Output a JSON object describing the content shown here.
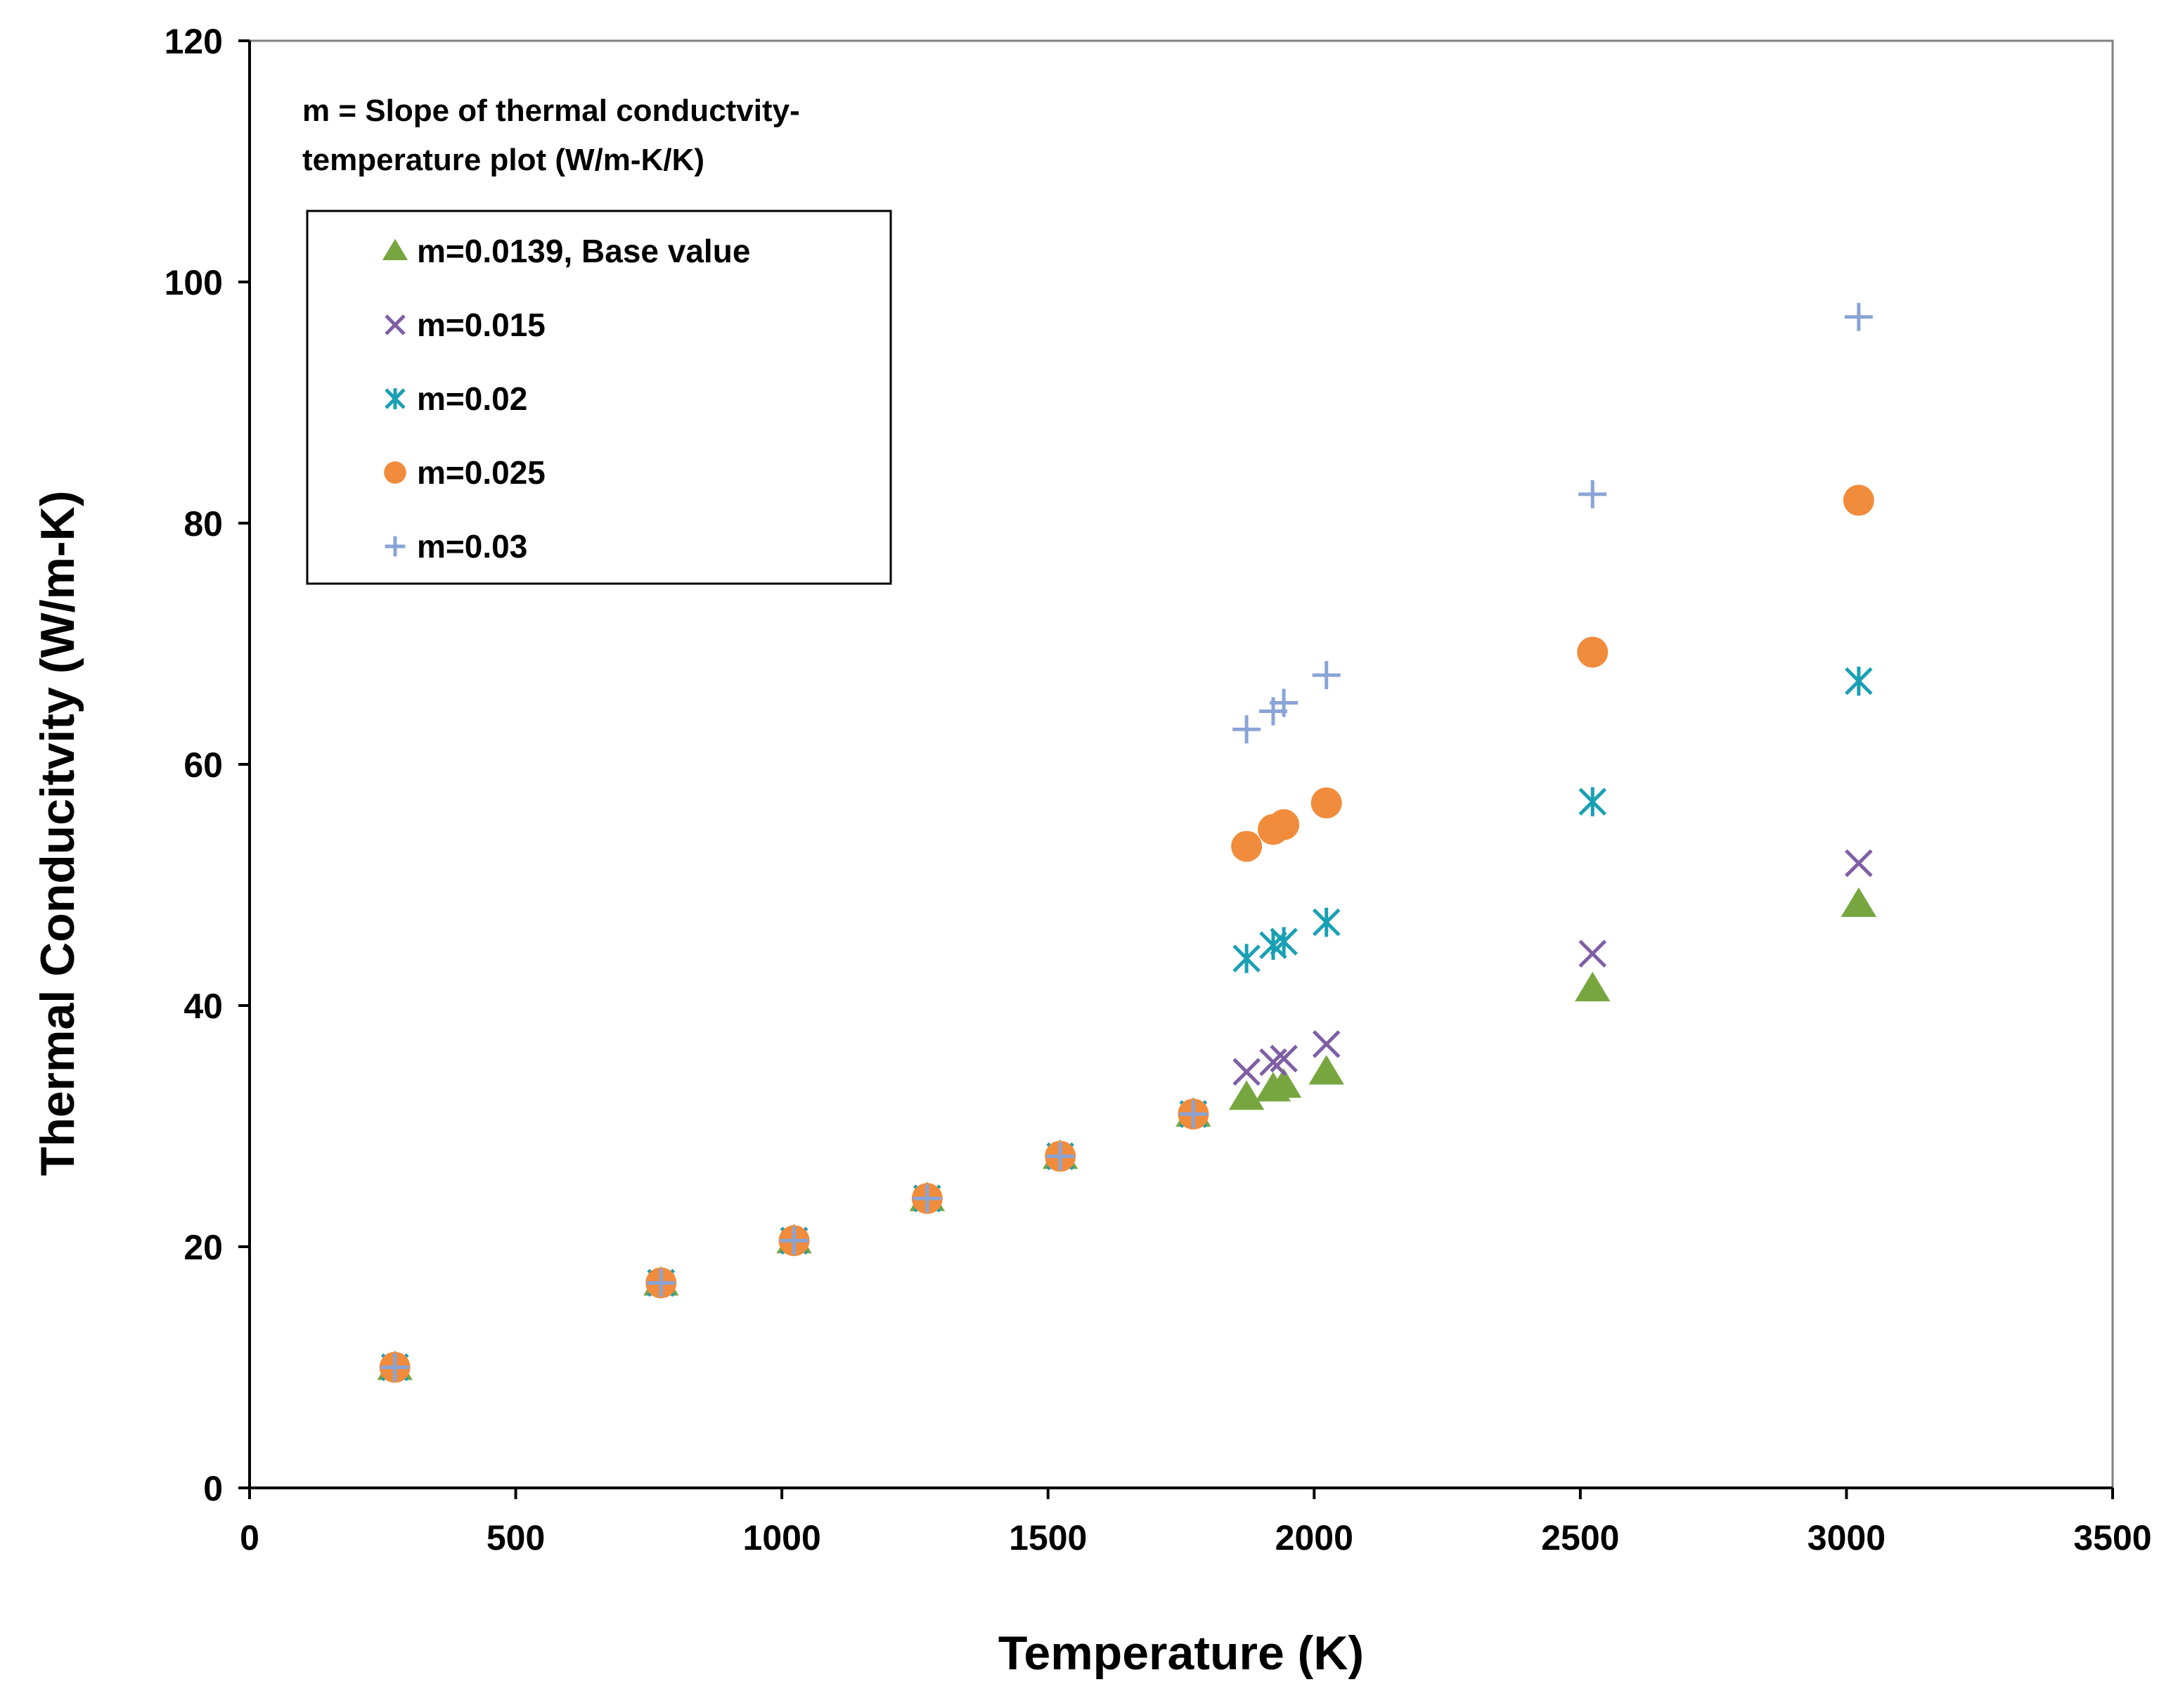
{
  "chart_data": {
    "type": "scatter",
    "title": "",
    "xlabel": "Temperature (K)",
    "ylabel": "Thermal Conducitvity (W/m-K)",
    "xlim": [
      0,
      3500
    ],
    "ylim": [
      0,
      120
    ],
    "xticks": [
      0,
      500,
      1000,
      1500,
      2000,
      2500,
      3000,
      3500
    ],
    "yticks": [
      0,
      20,
      40,
      60,
      80,
      100,
      120
    ],
    "xtick_labels": [
      "0",
      "500",
      "1000",
      "1500",
      "2000",
      "2500",
      "3000",
      "3500"
    ],
    "ytick_labels": [
      "0",
      "20",
      "40",
      "60",
      "80",
      "100",
      "120"
    ],
    "grid": false,
    "annotation": {
      "line1": "m = Slope of thermal conductvity-",
      "line2": "temperature plot (W/m-K/K)"
    },
    "legend_position": "top-left",
    "series": [
      {
        "name": "m=0.0139, Base value",
        "marker": "triangle",
        "color": "#77a640",
        "points": [
          [
            273,
            10
          ],
          [
            773,
            17
          ],
          [
            1023,
            20.5
          ],
          [
            1273,
            24
          ],
          [
            1523,
            27.5
          ],
          [
            1773,
            31
          ],
          [
            1873,
            32.4
          ],
          [
            1923,
            33.1
          ],
          [
            1943,
            33.4
          ],
          [
            2023,
            34.5
          ],
          [
            2523,
            41.4
          ],
          [
            3023,
            48.4
          ]
        ]
      },
      {
        "name": "m=0.015",
        "marker": "x",
        "color": "#7f5ea5",
        "points": [
          [
            273,
            10
          ],
          [
            773,
            17
          ],
          [
            1023,
            20.5
          ],
          [
            1273,
            24
          ],
          [
            1523,
            27.5
          ],
          [
            1773,
            31
          ],
          [
            1873,
            34.5
          ],
          [
            1923,
            35.3
          ],
          [
            1943,
            35.6
          ],
          [
            2023,
            36.8
          ],
          [
            2523,
            44.3
          ],
          [
            3023,
            51.8
          ]
        ]
      },
      {
        "name": "m=0.02",
        "marker": "star",
        "color": "#1aa0b4",
        "points": [
          [
            273,
            10
          ],
          [
            773,
            17
          ],
          [
            1023,
            20.5
          ],
          [
            1273,
            24
          ],
          [
            1523,
            27.5
          ],
          [
            1773,
            31
          ],
          [
            1873,
            43.9
          ],
          [
            1923,
            45
          ],
          [
            1943,
            45.3
          ],
          [
            2023,
            46.9
          ],
          [
            2523,
            56.9
          ],
          [
            3023,
            66.9
          ]
        ]
      },
      {
        "name": "m=0.025",
        "marker": "circle",
        "color": "#f08c3c",
        "points": [
          [
            273,
            10
          ],
          [
            773,
            17
          ],
          [
            1023,
            20.5
          ],
          [
            1273,
            24
          ],
          [
            1523,
            27.5
          ],
          [
            1773,
            31
          ],
          [
            1873,
            53.2
          ],
          [
            1923,
            54.6
          ],
          [
            1943,
            55
          ],
          [
            2023,
            56.8
          ],
          [
            2523,
            69.3
          ],
          [
            3023,
            81.9
          ]
        ]
      },
      {
        "name": "m=0.03",
        "marker": "plus",
        "color": "#8aa4d6",
        "points": [
          [
            273,
            10
          ],
          [
            773,
            17
          ],
          [
            1023,
            20.5
          ],
          [
            1273,
            24
          ],
          [
            1523,
            27.5
          ],
          [
            1773,
            31
          ],
          [
            1873,
            62.9
          ],
          [
            1923,
            64.4
          ],
          [
            1943,
            65.1
          ],
          [
            2023,
            67.4
          ],
          [
            2523,
            82.4
          ],
          [
            3023,
            97.1
          ]
        ]
      }
    ]
  }
}
